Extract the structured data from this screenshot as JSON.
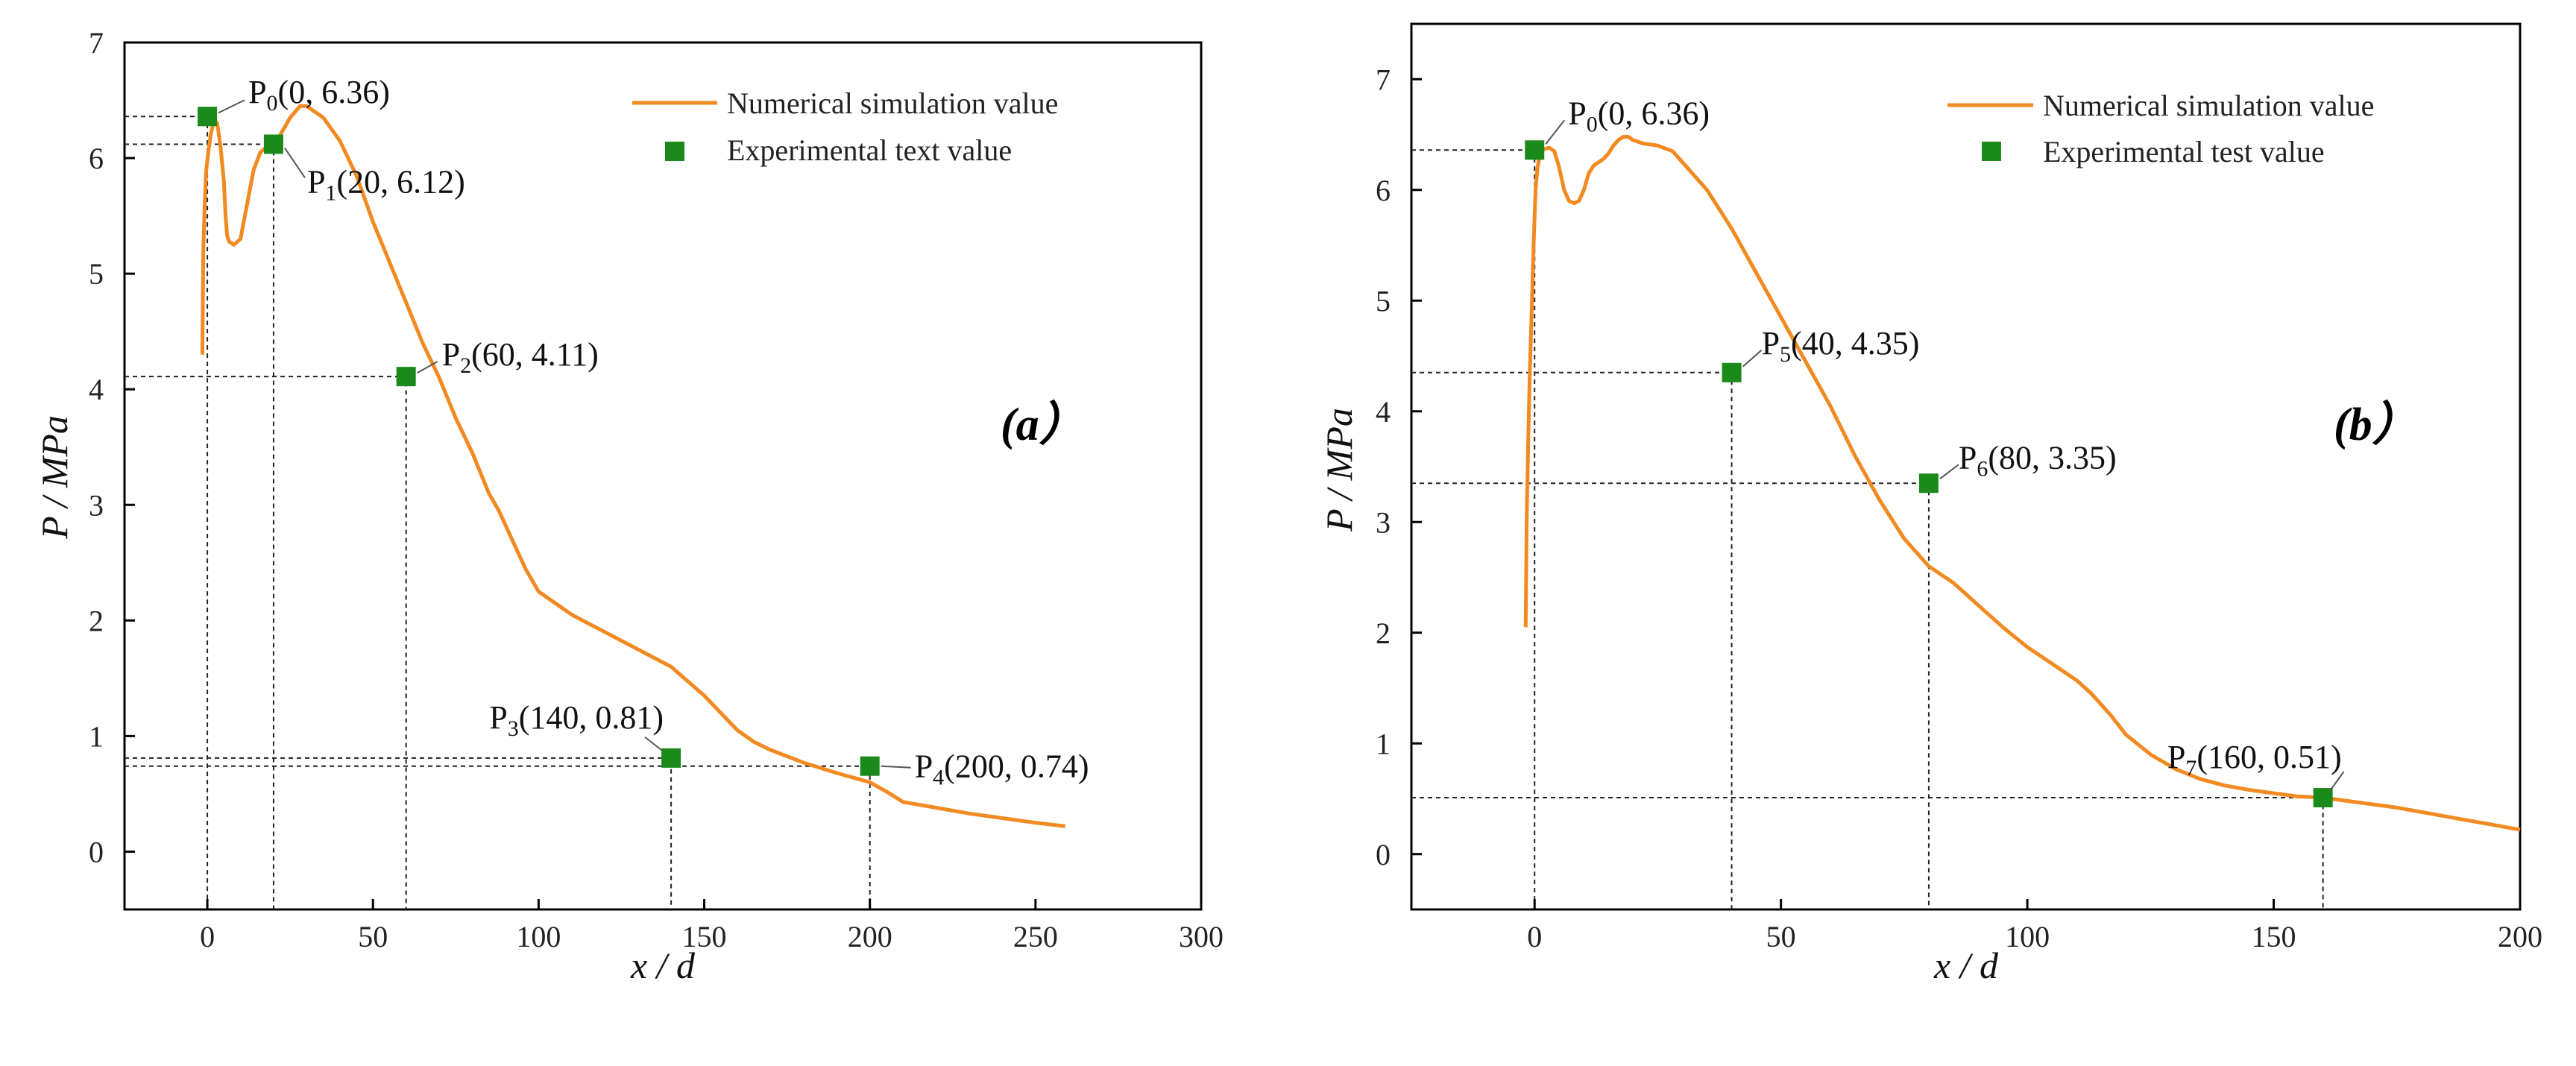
{
  "chart_data": [
    {
      "type": "line",
      "panel": "(a）",
      "xlabel": "x / d",
      "ylabel": "P / MPa",
      "xlim": [
        -25,
        300
      ],
      "ylim": [
        -0.5,
        7
      ],
      "xticks": [
        0,
        50,
        100,
        150,
        200,
        250,
        300
      ],
      "yticks": [
        0,
        1,
        2,
        3,
        4,
        5,
        6,
        7
      ],
      "legend_position": "top-right",
      "series": [
        {
          "name": "Numerical simulation value",
          "style": "line",
          "color": "#f28a22",
          "x": [
            -1.5,
            -1.2,
            -0.8,
            -0.3,
            0.3,
            1,
            2,
            3,
            4,
            5,
            5.5,
            6,
            6.5,
            7,
            8,
            10,
            12,
            13,
            14,
            16,
            18,
            20,
            22,
            25,
            28,
            30,
            35,
            40,
            45,
            50,
            55,
            60,
            65,
            70,
            75,
            80,
            85,
            88,
            92,
            96,
            100,
            105,
            110,
            120,
            130,
            140,
            150,
            160,
            165,
            170,
            180,
            190,
            200,
            205,
            210,
            220,
            230,
            240,
            250,
            259
          ],
          "y": [
            4.3,
            5.2,
            5.6,
            5.9,
            6.05,
            6.2,
            6.33,
            6.3,
            6.1,
            5.8,
            5.5,
            5.33,
            5.28,
            5.27,
            5.25,
            5.3,
            5.6,
            5.75,
            5.9,
            6.05,
            6.1,
            6.1,
            6.2,
            6.35,
            6.45,
            6.45,
            6.35,
            6.15,
            5.85,
            5.45,
            5.1,
            4.75,
            4.4,
            4.1,
            3.75,
            3.45,
            3.1,
            2.95,
            2.7,
            2.45,
            2.25,
            2.15,
            2.05,
            1.9,
            1.75,
            1.6,
            1.35,
            1.05,
            0.95,
            0.88,
            0.77,
            0.68,
            0.6,
            0.52,
            0.43,
            0.38,
            0.33,
            0.29,
            0.25,
            0.22
          ]
        },
        {
          "name": "Experimental text value",
          "style": "marker",
          "color": "#1b8a1b",
          "x": [
            0,
            20,
            60,
            140,
            200
          ],
          "y": [
            6.36,
            6.12,
            4.11,
            0.81,
            0.74
          ]
        }
      ],
      "annotations": [
        {
          "base": "P",
          "sub": "0",
          "coords": "(0, 6.36)"
        },
        {
          "base": "P",
          "sub": "1",
          "coords": "(20, 6.12)"
        },
        {
          "base": "P",
          "sub": "2",
          "coords": "(60, 4.11)"
        },
        {
          "base": "P",
          "sub": "3",
          "coords": "(140, 0.81)"
        },
        {
          "base": "P",
          "sub": "4",
          "coords": "(200, 0.74)"
        }
      ]
    },
    {
      "type": "line",
      "panel": "(b）",
      "xlabel": "x / d",
      "ylabel": "P / MPa",
      "xlim": [
        -25,
        200
      ],
      "ylim": [
        -0.5,
        7.5
      ],
      "xticks": [
        0,
        50,
        100,
        150,
        200
      ],
      "yticks": [
        0,
        1,
        2,
        3,
        4,
        5,
        6,
        7
      ],
      "legend_position": "top-right",
      "series": [
        {
          "name": "Numerical simulation value",
          "style": "line",
          "color": "#f28a22",
          "x": [
            -1.8,
            -1.6,
            -1.3,
            -1,
            -0.6,
            -0.2,
            0.2,
            0.6,
            1,
            1.5,
            2,
            3,
            4,
            5,
            6,
            7,
            8,
            9,
            10,
            11,
            12,
            13,
            14,
            15,
            16,
            17,
            18,
            19,
            20,
            22,
            25,
            28,
            30,
            35,
            40,
            45,
            50,
            55,
            60,
            65,
            70,
            75,
            80,
            85,
            90,
            95,
            100,
            105,
            110,
            113,
            117,
            120,
            125,
            130,
            135,
            140,
            145,
            150,
            155,
            160,
            165,
            170,
            175,
            180,
            185,
            190,
            195,
            200
          ],
          "y": [
            2.05,
            3.0,
            3.7,
            4.3,
            4.9,
            5.5,
            6.0,
            6.2,
            6.3,
            6.35,
            6.37,
            6.38,
            6.35,
            6.2,
            6.0,
            5.9,
            5.88,
            5.9,
            6.0,
            6.15,
            6.22,
            6.25,
            6.28,
            6.33,
            6.4,
            6.45,
            6.48,
            6.48,
            6.45,
            6.42,
            6.4,
            6.35,
            6.25,
            6.0,
            5.65,
            5.25,
            4.85,
            4.45,
            4.05,
            3.6,
            3.2,
            2.85,
            2.6,
            2.45,
            2.25,
            2.05,
            1.87,
            1.72,
            1.57,
            1.45,
            1.25,
            1.08,
            0.9,
            0.77,
            0.68,
            0.62,
            0.58,
            0.55,
            0.52,
            0.51,
            0.48,
            0.45,
            0.42,
            0.38,
            0.34,
            0.3,
            0.26,
            0.22
          ]
        },
        {
          "name": "Experimental test value",
          "style": "marker",
          "color": "#1b8a1b",
          "x": [
            0,
            40,
            80,
            160
          ],
          "y": [
            6.36,
            4.35,
            3.35,
            0.51
          ]
        }
      ],
      "annotations": [
        {
          "base": "P",
          "sub": "0",
          "coords": "(0, 6.36)"
        },
        {
          "base": "P",
          "sub": "5",
          "coords": "(40, 4.35)"
        },
        {
          "base": "P",
          "sub": "6",
          "coords": "(80, 3.35)"
        },
        {
          "base": "P",
          "sub": "7",
          "coords": "(160, 0.51)"
        }
      ]
    }
  ]
}
